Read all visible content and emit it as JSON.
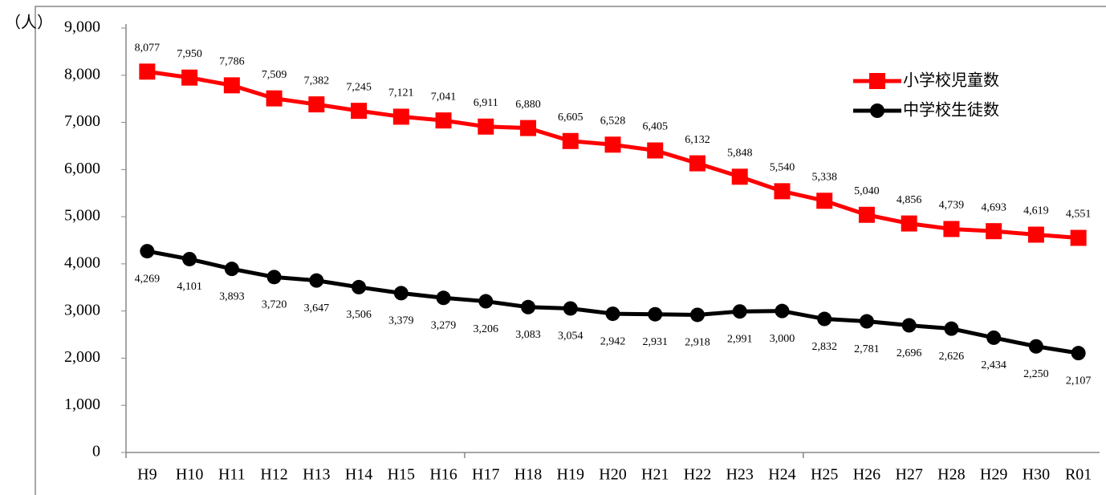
{
  "chart_data": {
    "type": "line",
    "y_label": "（人）",
    "categories": [
      "H9",
      "H10",
      "H11",
      "H12",
      "H13",
      "H14",
      "H15",
      "H16",
      "H17",
      "H18",
      "H19",
      "H20",
      "H21",
      "H22",
      "H23",
      "H24",
      "H25",
      "H26",
      "H27",
      "H28",
      "H29",
      "H30",
      "R01"
    ],
    "series": [
      {
        "name": "小学校児童数",
        "color": "#ff0000",
        "marker": "square",
        "values": [
          8077,
          7950,
          7786,
          7509,
          7382,
          7245,
          7121,
          7041,
          6911,
          6880,
          6605,
          6528,
          6405,
          6132,
          5848,
          5540,
          5338,
          5040,
          4856,
          4739,
          4693,
          4619,
          4551
        ],
        "value_labels": [
          "8,077",
          "7,950",
          "7,786",
          "7,509",
          "7,382",
          "7,245",
          "7,121",
          "7,041",
          "6,911",
          "6,880",
          "6,605",
          "6,528",
          "6,405",
          "6,132",
          "5,848",
          "5,540",
          "5,338",
          "5,040",
          "4,856",
          "4,739",
          "4,693",
          "4,619",
          "4,551"
        ]
      },
      {
        "name": "中学校生徒数",
        "color": "#000000",
        "marker": "circle",
        "values": [
          4269,
          4101,
          3893,
          3720,
          3647,
          3506,
          3379,
          3279,
          3206,
          3083,
          3054,
          2942,
          2931,
          2918,
          2991,
          3000,
          2832,
          2781,
          2696,
          2626,
          2434,
          2250,
          2107
        ],
        "value_labels": [
          "4,269",
          "4,101",
          "3,893",
          "3,720",
          "3,647",
          "3,506",
          "3,379",
          "3,279",
          "3,206",
          "3,083",
          "3,054",
          "2,942",
          "2,931",
          "2,918",
          "2,991",
          "3,000",
          "2,832",
          "2,781",
          "2,696",
          "2,626",
          "2,434",
          "2,250",
          "2,107"
        ]
      }
    ],
    "ylim": [
      0,
      9000
    ],
    "yticks": [
      0,
      {
        "value": 1000,
        "label": "1,000"
      },
      {
        "value": 2000,
        "label": "2,000"
      },
      {
        "value": 3000,
        "label": "3,000"
      },
      {
        "value": 4000,
        "label": "4,000"
      },
      {
        "value": 5000,
        "label": "5,000"
      },
      {
        "value": 6000,
        "label": "6,000"
      },
      {
        "value": 7000,
        "label": "7,000"
      },
      {
        "value": 8000,
        "label": "8,000"
      },
      {
        "value": 9000,
        "label": "9,000"
      }
    ],
    "grid": false,
    "legend": "upper right"
  }
}
